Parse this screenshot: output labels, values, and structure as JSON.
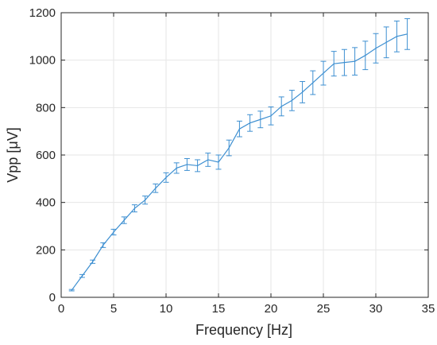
{
  "chart_data": {
    "type": "line",
    "title": "",
    "xlabel": "Frequency [Hz]",
    "ylabel": "Vpp [μV]",
    "xlim": [
      0,
      35
    ],
    "ylim": [
      0,
      1200
    ],
    "xticks": [
      0,
      5,
      10,
      15,
      20,
      25,
      30,
      35
    ],
    "yticks": [
      0,
      200,
      400,
      600,
      800,
      1000,
      1200
    ],
    "grid": true,
    "line_color": "#3d8fd1",
    "series": [
      {
        "x": [
          1,
          2,
          3,
          4,
          5,
          6,
          7,
          8,
          9,
          10,
          11,
          12,
          13,
          14,
          15,
          16,
          17,
          18,
          19,
          20,
          21,
          22,
          23,
          24,
          25,
          26,
          27,
          28,
          29,
          30,
          31,
          32,
          33
        ],
        "y": [
          30,
          90,
          150,
          220,
          275,
          325,
          375,
          410,
          460,
          505,
          545,
          560,
          555,
          580,
          570,
          630,
          710,
          735,
          750,
          765,
          805,
          830,
          865,
          905,
          945,
          985,
          990,
          995,
          1020,
          1050,
          1075,
          1100,
          1110
        ],
        "error": [
          3,
          6,
          7,
          10,
          12,
          14,
          15,
          17,
          18,
          20,
          22,
          25,
          25,
          28,
          30,
          33,
          33,
          35,
          35,
          38,
          40,
          43,
          45,
          50,
          50,
          52,
          55,
          58,
          60,
          62,
          65,
          65,
          65
        ]
      }
    ]
  }
}
